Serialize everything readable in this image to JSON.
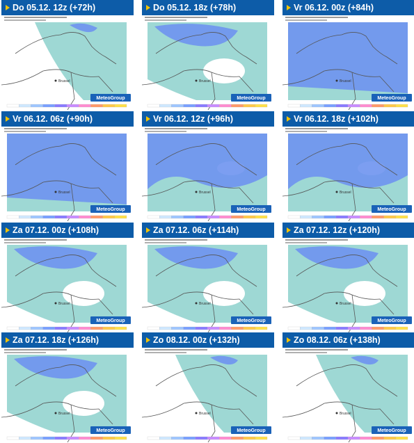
{
  "panels": [
    {
      "title": "Do 05.12. 12z (+72h)",
      "coverage": "low"
    },
    {
      "title": "Do 05.12. 18z (+78h)",
      "coverage": "medium"
    },
    {
      "title": "Vr 06.12. 00z (+84h)",
      "coverage": "full"
    },
    {
      "title": "Vr 06.12. 06z (+90h)",
      "coverage": "full"
    },
    {
      "title": "Vr 06.12. 12z (+96h)",
      "coverage": "high"
    },
    {
      "title": "Vr 06.12. 18z (+102h)",
      "coverage": "high"
    },
    {
      "title": "Za 07.12. 00z (+108h)",
      "coverage": "medium"
    },
    {
      "title": "Za 07.12. 06z (+114h)",
      "coverage": "medium"
    },
    {
      "title": "Za 07.12. 12z (+120h)",
      "coverage": "medium"
    },
    {
      "title": "Za 07.12. 18z (+126h)",
      "coverage": "medium"
    },
    {
      "title": "Zo 08.12. 00z (+132h)",
      "coverage": "low"
    },
    {
      "title": "Zo 08.12. 06z (+138h)",
      "coverage": "low"
    }
  ],
  "logo": "MeteoGroup",
  "city_label": "Brussel",
  "colors": {
    "header": "#0d5ca8",
    "arrow": "#f2c200",
    "precip_light": "#9ed8d4",
    "precip_heavy": "#6e93ef",
    "land": "#ffffff",
    "border": "#555555"
  }
}
